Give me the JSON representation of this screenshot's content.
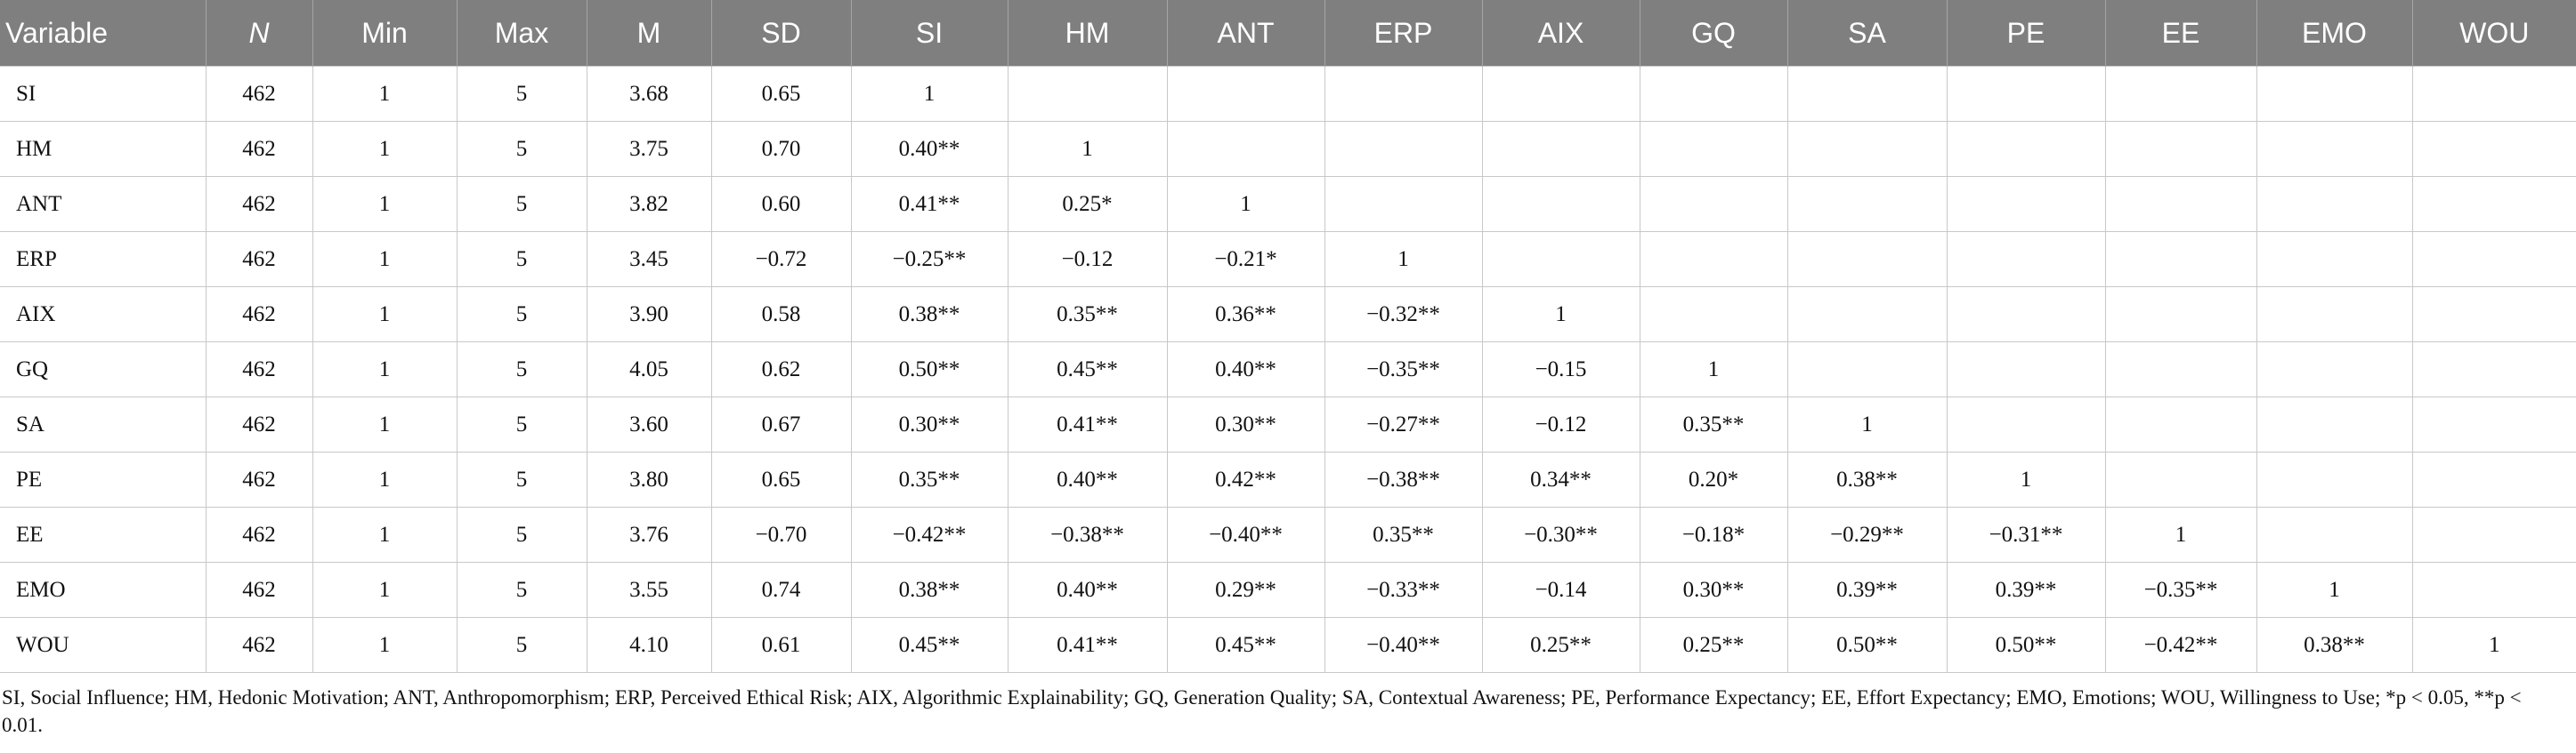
{
  "table": {
    "header": [
      "Variable",
      "N",
      "Min",
      "Max",
      "M",
      "SD",
      "SI",
      "HM",
      "ANT",
      "ERP",
      "AIX",
      "GQ",
      "SA",
      "PE",
      "EE",
      "EMO",
      "WOU"
    ],
    "rows": [
      [
        "SI",
        "462",
        "1",
        "5",
        "3.68",
        "0.65",
        "1"
      ],
      [
        "HM",
        "462",
        "1",
        "5",
        "3.75",
        "0.70",
        "0.40**",
        "1"
      ],
      [
        "ANT",
        "462",
        "1",
        "5",
        "3.82",
        "0.60",
        "0.41**",
        "0.25*",
        "1"
      ],
      [
        "ERP",
        "462",
        "1",
        "5",
        "3.45",
        "−0.72",
        "−0.25**",
        "−0.12",
        "−0.21*",
        "1"
      ],
      [
        "AIX",
        "462",
        "1",
        "5",
        "3.90",
        "0.58",
        "0.38**",
        "0.35**",
        "0.36**",
        "−0.32**",
        "1"
      ],
      [
        "GQ",
        "462",
        "1",
        "5",
        "4.05",
        "0.62",
        "0.50**",
        "0.45**",
        "0.40**",
        "−0.35**",
        "−0.15",
        "1"
      ],
      [
        "SA",
        "462",
        "1",
        "5",
        "3.60",
        "0.67",
        "0.30**",
        "0.41**",
        "0.30**",
        "−0.27**",
        "−0.12",
        "0.35**",
        "1"
      ],
      [
        "PE",
        "462",
        "1",
        "5",
        "3.80",
        "0.65",
        "0.35**",
        "0.40**",
        "0.42**",
        "−0.38**",
        "0.34**",
        "0.20*",
        "0.38**",
        "1"
      ],
      [
        "EE",
        "462",
        "1",
        "5",
        "3.76",
        "−0.70",
        "−0.42**",
        "−0.38**",
        "−0.40**",
        "0.35**",
        "−0.30**",
        "−0.18*",
        "−0.29**",
        "−0.31**",
        "1"
      ],
      [
        "EMO",
        "462",
        "1",
        "5",
        "3.55",
        "0.74",
        "0.38**",
        "0.40**",
        "0.29**",
        "−0.33**",
        "−0.14",
        "0.30**",
        "0.39**",
        "0.39**",
        "−0.35**",
        "1"
      ],
      [
        "WOU",
        "462",
        "1",
        "5",
        "4.10",
        "0.61",
        "0.45**",
        "0.41**",
        "0.45**",
        "−0.40**",
        "0.25**",
        "0.25**",
        "0.50**",
        "0.50**",
        "−0.42**",
        "0.38**",
        "1"
      ]
    ]
  },
  "footnote": "SI, Social Influence; HM, Hedonic Motivation; ANT, Anthropomorphism; ERP, Perceived Ethical Risk; AIX, Algorithmic Explainability; GQ, Generation Quality; SA, Contextual Awareness; PE, Performance Expectancy; EE, Effort Expectancy; EMO, Emotions; WOU, Willingness to Use; *p < 0.05, **p < 0.01."
}
